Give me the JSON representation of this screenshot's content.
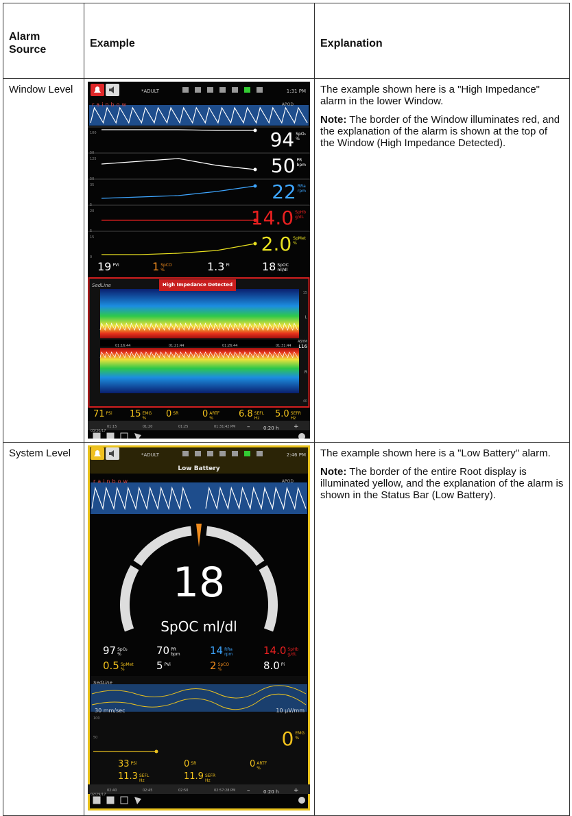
{
  "table": {
    "headers": [
      "Alarm Source",
      "Example",
      "Explanation"
    ],
    "rows": [
      {
        "source": "Window Level",
        "explanation": "The example shown here is a \"High Impedance\" alarm in the lower Window.",
        "note_label": "Note:",
        "note": "The border of the Window illuminates red, and the explanation of the alarm is shown at the top of the Window (High Impedance Detected).",
        "screen": {
          "mode": "*ADULT",
          "time": "1:31 PM",
          "brand": "rainbow",
          "apod": "APOD",
          "trends": [
            {
              "value": "94",
              "label": "SpO₂",
              "unit": "%",
              "scale": [
                "100",
                "50"
              ]
            },
            {
              "value": "50",
              "label": "PR",
              "unit": "bpm",
              "scale": [
                "125",
                "50"
              ]
            },
            {
              "value": "22",
              "label": "RRa",
              "unit": "rpm",
              "scale": [
                "35",
                "5"
              ]
            },
            {
              "value": "14.0",
              "label": "SpHb",
              "unit": "g/dL",
              "scale": [
                "20",
                "5"
              ]
            },
            {
              "value": "2.0",
              "label": "SpMet",
              "unit": "%",
              "scale": [
                "15",
                "0"
              ]
            }
          ],
          "params": [
            {
              "value": "19",
              "label": "PVi"
            },
            {
              "value": "1",
              "label": "SpCO",
              "unit": "%"
            },
            {
              "value": "1.3",
              "label": "Pi"
            },
            {
              "value": "18",
              "label": "SpOC",
              "unit": "ml/dl"
            }
          ],
          "sedline": {
            "title": "SedLine",
            "alarm": "High Impedance Detected",
            "times": [
              "01:16:44",
              "01:21:44",
              "01:26:44",
              "01:31:44"
            ],
            "left": "L",
            "right": "R",
            "asym": "ASYM",
            "asym_value": "L16",
            "scale": [
              "15",
              "40"
            ]
          },
          "eeg": [
            {
              "value": "71",
              "label": "PSi"
            },
            {
              "value": "15",
              "label": "EMG",
              "unit": "%"
            },
            {
              "value": "0",
              "label": "SR"
            },
            {
              "value": "0",
              "label": "ARTF",
              "unit": "%"
            },
            {
              "value": "6.8",
              "label": "SEFL",
              "unit": "Hz"
            },
            {
              "value": "5.0",
              "label": "SEFR",
              "unit": "Hz"
            }
          ],
          "timeline": {
            "ticks": [
              "01:15",
              "01:20",
              "01:25",
              "01:31:42 PM"
            ],
            "date": "03/30/17",
            "span": "0:20 h",
            "minus": "–",
            "plus": "+"
          }
        }
      },
      {
        "source": "System Level",
        "explanation": "The example shown here is a \"Low Battery\" alarm.",
        "note_label": "Note:",
        "note": "The border of the entire Root display is illuminated yellow, and the explanation of the alarm is shown in the Status Bar (Low Battery).",
        "screen": {
          "mode": "*ADULT",
          "time": "2:46 PM",
          "status": "Low Battery",
          "brand": "rainbow",
          "apod": "APOD",
          "gauge": {
            "value": "18",
            "label": "SpOC ml/dl"
          },
          "params": [
            {
              "value": "97",
              "label": "SpO₂",
              "unit": "%"
            },
            {
              "value": "70",
              "label": "PR",
              "unit": "bpm"
            },
            {
              "value": "14",
              "label": "RRa",
              "unit": "rpm"
            },
            {
              "value": "14.0",
              "label": "SpHb",
              "unit": "g/dL"
            },
            {
              "value": "0.5",
              "label": "SpMet",
              "unit": "%"
            },
            {
              "value": "5",
              "label": "PVi"
            },
            {
              "value": "2",
              "label": "SpCO",
              "unit": "%"
            },
            {
              "value": "8.0",
              "label": "Pi"
            }
          ],
          "sedline": {
            "title": "SedLine",
            "speed": "30 mm/sec",
            "gain": "10 µV/mm",
            "scale": [
              "100",
              "50"
            ],
            "emg": {
              "value": "0",
              "label": "EMG",
              "unit": "%"
            }
          },
          "eeg": [
            {
              "value": "33",
              "label": "PSi"
            },
            {
              "value": "0",
              "label": "SR"
            },
            {
              "value": "0",
              "label": "ARTF",
              "unit": "%"
            },
            {
              "value": "11.3",
              "label": "SEFL",
              "unit": "Hz"
            },
            {
              "value": "11.9",
              "label": "SEFR",
              "unit": "Hz"
            }
          ],
          "timeline": {
            "ticks": [
              "02:40",
              "02:45",
              "02:50",
              "02:57:28 PM"
            ],
            "date": "02/29/17",
            "span": "0:20 h",
            "minus": "–",
            "plus": "+"
          }
        }
      }
    ]
  }
}
